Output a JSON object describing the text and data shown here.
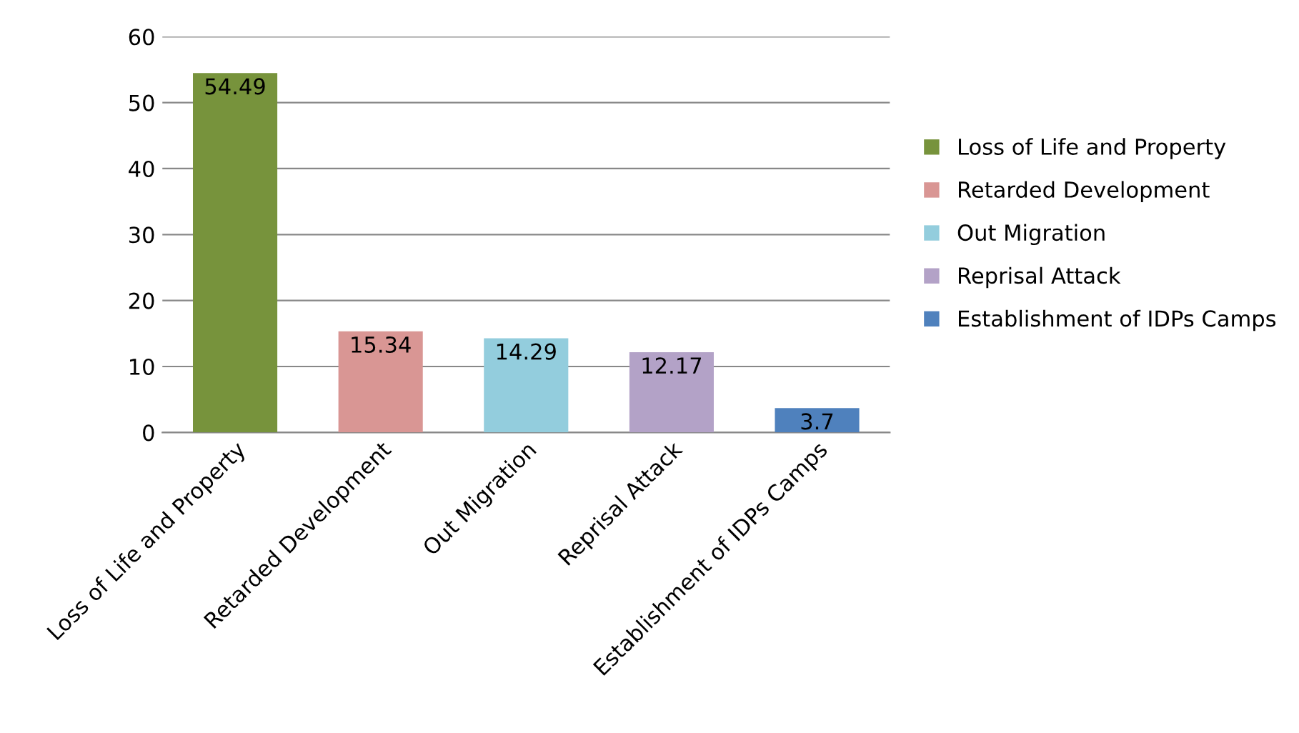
{
  "chart_data": {
    "type": "bar",
    "categories": [
      "Loss of Life and Property",
      "Retarded Development",
      "Out Migration",
      "Reprisal Attack",
      "Establishment of IDPs Camps"
    ],
    "series": [
      {
        "name": "Loss of Life and Property",
        "color": "#77933c",
        "values": [
          54.49,
          null,
          null,
          null,
          null
        ]
      },
      {
        "name": "Retarded Development",
        "color": "#d99694",
        "values": [
          null,
          15.34,
          null,
          null,
          null
        ]
      },
      {
        "name": "Out Migration",
        "color": "#93cddd",
        "values": [
          null,
          null,
          14.29,
          null,
          null
        ]
      },
      {
        "name": "Reprisal Attack",
        "color": "#b3a2c7",
        "values": [
          null,
          null,
          null,
          12.17,
          null
        ]
      },
      {
        "name": "Establishment of IDPs Camps",
        "color": "#4f81bd",
        "values": [
          null,
          null,
          null,
          null,
          3.7
        ]
      }
    ],
    "ylim": [
      0,
      60
    ],
    "yticks": [
      0,
      10,
      20,
      30,
      40,
      50,
      60
    ],
    "grid": "y",
    "legend": "right",
    "data_labels": true
  }
}
